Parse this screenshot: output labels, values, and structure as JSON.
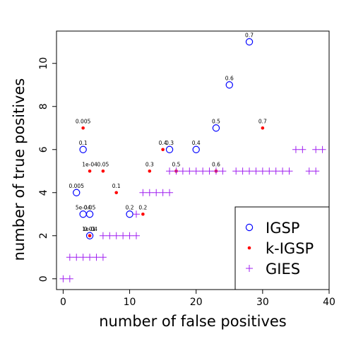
{
  "chart_data": {
    "type": "scatter",
    "xlabel": "number of false positives",
    "ylabel": "number of true positives",
    "xlim": [
      -1,
      40
    ],
    "ylim": [
      -0.5,
      11.5
    ],
    "x_ticks": [
      0,
      10,
      20,
      30,
      40
    ],
    "y_ticks": [
      0,
      2,
      4,
      6,
      8,
      10
    ],
    "legend_position": "bottom-right",
    "colors": {
      "IGSP": "#0000ff",
      "k-IGSP": "#ff0000",
      "GIES": "#a020f0"
    },
    "series": [
      {
        "name": "IGSP",
        "marker": "open-circle",
        "points": [
          {
            "x": 2,
            "y": 4,
            "label": "0.005"
          },
          {
            "x": 3,
            "y": 3,
            "label": "5e-04"
          },
          {
            "x": 4,
            "y": 3,
            "label": "0.05"
          },
          {
            "x": 4,
            "y": 2,
            "label": "1e-04"
          },
          {
            "x": 3,
            "y": 6,
            "label": "0.1"
          },
          {
            "x": 10,
            "y": 3,
            "label": "0.2"
          },
          {
            "x": 16,
            "y": 6,
            "label": "0.3"
          },
          {
            "x": 20,
            "y": 6,
            "label": "0.4"
          },
          {
            "x": 23,
            "y": 7,
            "label": "0.5"
          },
          {
            "x": 25,
            "y": 9,
            "label": "0.6"
          },
          {
            "x": 28,
            "y": 11,
            "label": "0.7"
          }
        ]
      },
      {
        "name": "k-IGSP",
        "marker": "filled-dot",
        "points": [
          {
            "x": 3,
            "y": 7,
            "label": "0.005"
          },
          {
            "x": 4,
            "y": 5,
            "label": "1e-04"
          },
          {
            "x": 4,
            "y": 2,
            "label": "0.01"
          },
          {
            "x": 6,
            "y": 5,
            "label": "0.05"
          },
          {
            "x": 8,
            "y": 4,
            "label": "0.1"
          },
          {
            "x": 12,
            "y": 3,
            "label": "0.2"
          },
          {
            "x": 13,
            "y": 5,
            "label": "0.3"
          },
          {
            "x": 15,
            "y": 6,
            "label": "0.4"
          },
          {
            "x": 17,
            "y": 5,
            "label": "0.5"
          },
          {
            "x": 23,
            "y": 5,
            "label": "0.6"
          },
          {
            "x": 30,
            "y": 7,
            "label": "0.7"
          }
        ]
      },
      {
        "name": "GIES",
        "marker": "plus",
        "points": [
          {
            "x": 0,
            "y": 0
          },
          {
            "x": 1,
            "y": 0
          },
          {
            "x": 1,
            "y": 1
          },
          {
            "x": 2,
            "y": 1
          },
          {
            "x": 3,
            "y": 1
          },
          {
            "x": 4,
            "y": 1
          },
          {
            "x": 5,
            "y": 1
          },
          {
            "x": 6,
            "y": 1
          },
          {
            "x": 6,
            "y": 2
          },
          {
            "x": 7,
            "y": 2
          },
          {
            "x": 8,
            "y": 2
          },
          {
            "x": 9,
            "y": 2
          },
          {
            "x": 10,
            "y": 2
          },
          {
            "x": 11,
            "y": 2
          },
          {
            "x": 11,
            "y": 3
          },
          {
            "x": 12,
            "y": 4
          },
          {
            "x": 13,
            "y": 4
          },
          {
            "x": 14,
            "y": 4
          },
          {
            "x": 15,
            "y": 4
          },
          {
            "x": 16,
            "y": 4
          },
          {
            "x": 16,
            "y": 5
          },
          {
            "x": 17,
            "y": 5
          },
          {
            "x": 18,
            "y": 5
          },
          {
            "x": 19,
            "y": 5
          },
          {
            "x": 20,
            "y": 5
          },
          {
            "x": 21,
            "y": 5
          },
          {
            "x": 22,
            "y": 5
          },
          {
            "x": 23,
            "y": 5
          },
          {
            "x": 24,
            "y": 5
          },
          {
            "x": 26,
            "y": 5
          },
          {
            "x": 27,
            "y": 5
          },
          {
            "x": 28,
            "y": 5
          },
          {
            "x": 29,
            "y": 5
          },
          {
            "x": 30,
            "y": 5
          },
          {
            "x": 31,
            "y": 5
          },
          {
            "x": 32,
            "y": 5
          },
          {
            "x": 33,
            "y": 5
          },
          {
            "x": 34,
            "y": 5
          },
          {
            "x": 35,
            "y": 6
          },
          {
            "x": 36,
            "y": 6
          },
          {
            "x": 37,
            "y": 5
          },
          {
            "x": 38,
            "y": 5
          },
          {
            "x": 38,
            "y": 6
          },
          {
            "x": 39,
            "y": 6
          }
        ]
      }
    ]
  }
}
